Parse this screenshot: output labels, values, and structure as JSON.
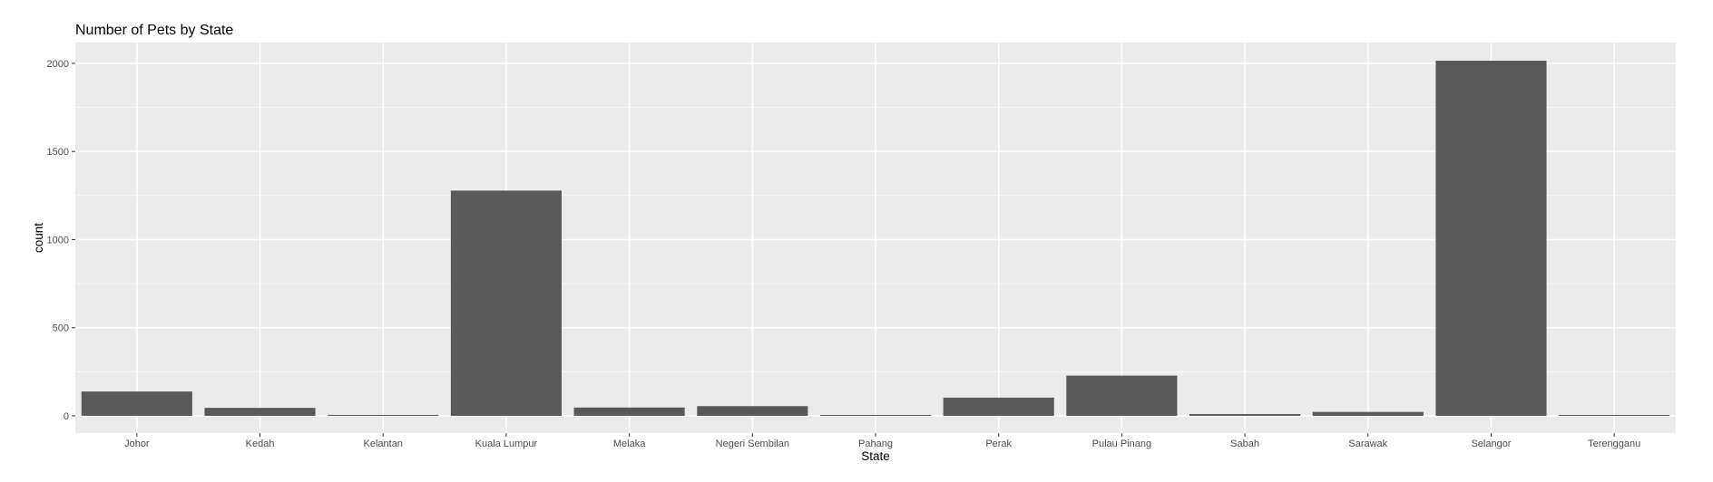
{
  "chart_data": {
    "type": "bar",
    "title": "Number of Pets by State",
    "xlabel": "State",
    "ylabel": "count",
    "categories": [
      "Johor",
      "Kedah",
      "Kelantan",
      "Kuala Lumpur",
      "Melaka",
      "Negeri Sembilan",
      "Pahang",
      "Perak",
      "Pulau Pinang",
      "Sabah",
      "Sarawak",
      "Selangor",
      "Terengganu"
    ],
    "values": [
      138,
      45,
      5,
      1278,
      47,
      55,
      3,
      103,
      228,
      10,
      22,
      2015,
      4
    ],
    "ylim": [
      -98,
      2118
    ],
    "yticks": [
      0,
      500,
      1000,
      1500,
      2000
    ],
    "grid": true,
    "legend": "none",
    "bar_color": "#595959",
    "panel_color": "#ebebeb"
  }
}
